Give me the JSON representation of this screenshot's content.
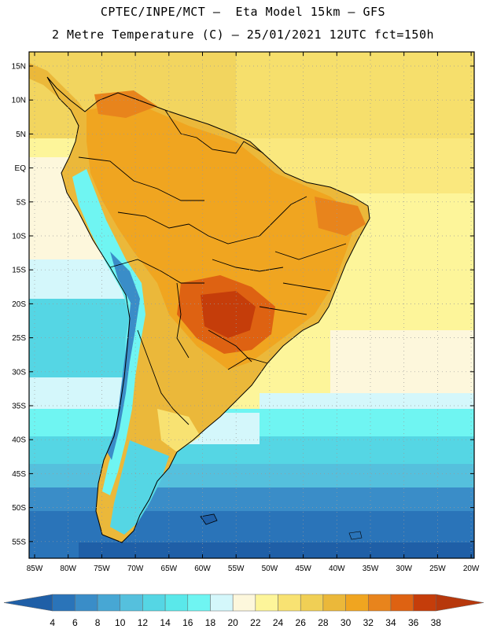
{
  "header": {
    "line1": "CPTEC/INPE/MCT –  Eta Model 15km – GFS",
    "line2": "2 Metre Temperature (C) – 25/01/2021 12UTC fct=150h"
  },
  "map": {
    "lat_labels": [
      "15N",
      "10N",
      "5N",
      "EQ",
      "5S",
      "10S",
      "15S",
      "20S",
      "25S",
      "30S",
      "35S",
      "40S",
      "45S",
      "50S",
      "55S"
    ],
    "lon_labels": [
      "85W",
      "80W",
      "75W",
      "70W",
      "65W",
      "60W",
      "55W",
      "50W",
      "45W",
      "40W",
      "35W",
      "30W",
      "25W",
      "20W"
    ]
  },
  "colorbar": {
    "labels": [
      "4",
      "6",
      "8",
      "10",
      "12",
      "14",
      "16",
      "18",
      "20",
      "22",
      "24",
      "26",
      "28",
      "30",
      "32",
      "34",
      "36",
      "38"
    ],
    "colors": [
      "#1f5fa7",
      "#2a74b9",
      "#3a8dc8",
      "#47a7d4",
      "#55c0dd",
      "#55d6e4",
      "#5ae8ea",
      "#6ff5f2",
      "#d4f7fb",
      "#fdf7dc",
      "#fdf59a",
      "#f8e272",
      "#f0cf55",
      "#ebb83a",
      "#f0a520",
      "#e8841c",
      "#de6212",
      "#c53d0a",
      "#b7380c"
    ]
  }
}
